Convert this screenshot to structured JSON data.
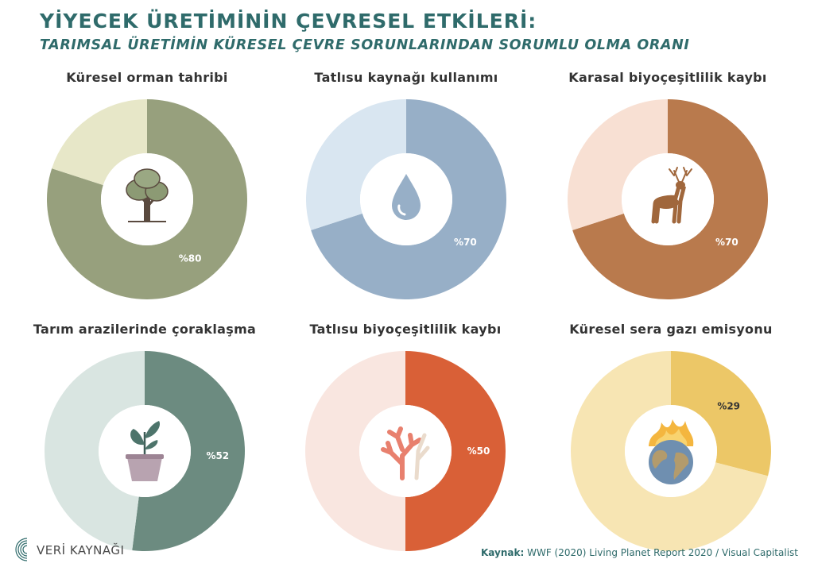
{
  "header": {
    "title": "YİYECEK ÜRETİMİNİN ÇEVRESEL ETKİLERİ:",
    "subtitle": "TARIMSAL ÜRETİMİN KÜRESEL ÇEVRE SORUNLARINDAN SORUMLU OLMA ORANI"
  },
  "chart_data": [
    {
      "type": "pie",
      "title": "Küresel orman tahribi",
      "values": [
        80,
        20
      ],
      "label": "%80",
      "colors": [
        "#97a07d",
        "#e7e7c8"
      ],
      "label_color": "#ffffff",
      "icon": "tree-icon"
    },
    {
      "type": "pie",
      "title": "Tatlısu kaynağı kullanımı",
      "values": [
        70,
        30
      ],
      "label": "%70",
      "colors": [
        "#97afc7",
        "#d9e6f1"
      ],
      "label_color": "#ffffff",
      "icon": "water-drop-icon"
    },
    {
      "type": "pie",
      "title": "Karasal biyoçeşitlilik kaybı",
      "values": [
        70,
        30
      ],
      "label": "%70",
      "colors": [
        "#b97a4d",
        "#f8e0d3"
      ],
      "label_color": "#ffffff",
      "icon": "deer-icon"
    },
    {
      "type": "pie",
      "title": "Tarım arazilerinde çoraklaşma",
      "values": [
        52,
        48
      ],
      "label": "%52",
      "colors": [
        "#6c8b80",
        "#d9e5e1"
      ],
      "label_color": "#ffffff",
      "icon": "potted-plant-icon"
    },
    {
      "type": "pie",
      "title": "Tatlısu biyoçeşitlilik kaybı",
      "values": [
        50,
        50
      ],
      "label": "%50",
      "colors": [
        "#d96037",
        "#f9e6e0"
      ],
      "label_color": "#ffffff",
      "icon": "coral-icon"
    },
    {
      "type": "pie",
      "title": "Küresel sera gazı emisyonu",
      "values": [
        29,
        71
      ],
      "label": "%29",
      "colors": [
        "#ecc767",
        "#f7e5b3"
      ],
      "label_color": "#333333",
      "icon": "burning-globe-icon"
    }
  ],
  "footer": {
    "logo_text": "VERİ KAYNAĞI",
    "source_label": "Kaynak:",
    "source_text": "WWF (2020) Living Planet Report 2020 / Visual Capitalist"
  }
}
